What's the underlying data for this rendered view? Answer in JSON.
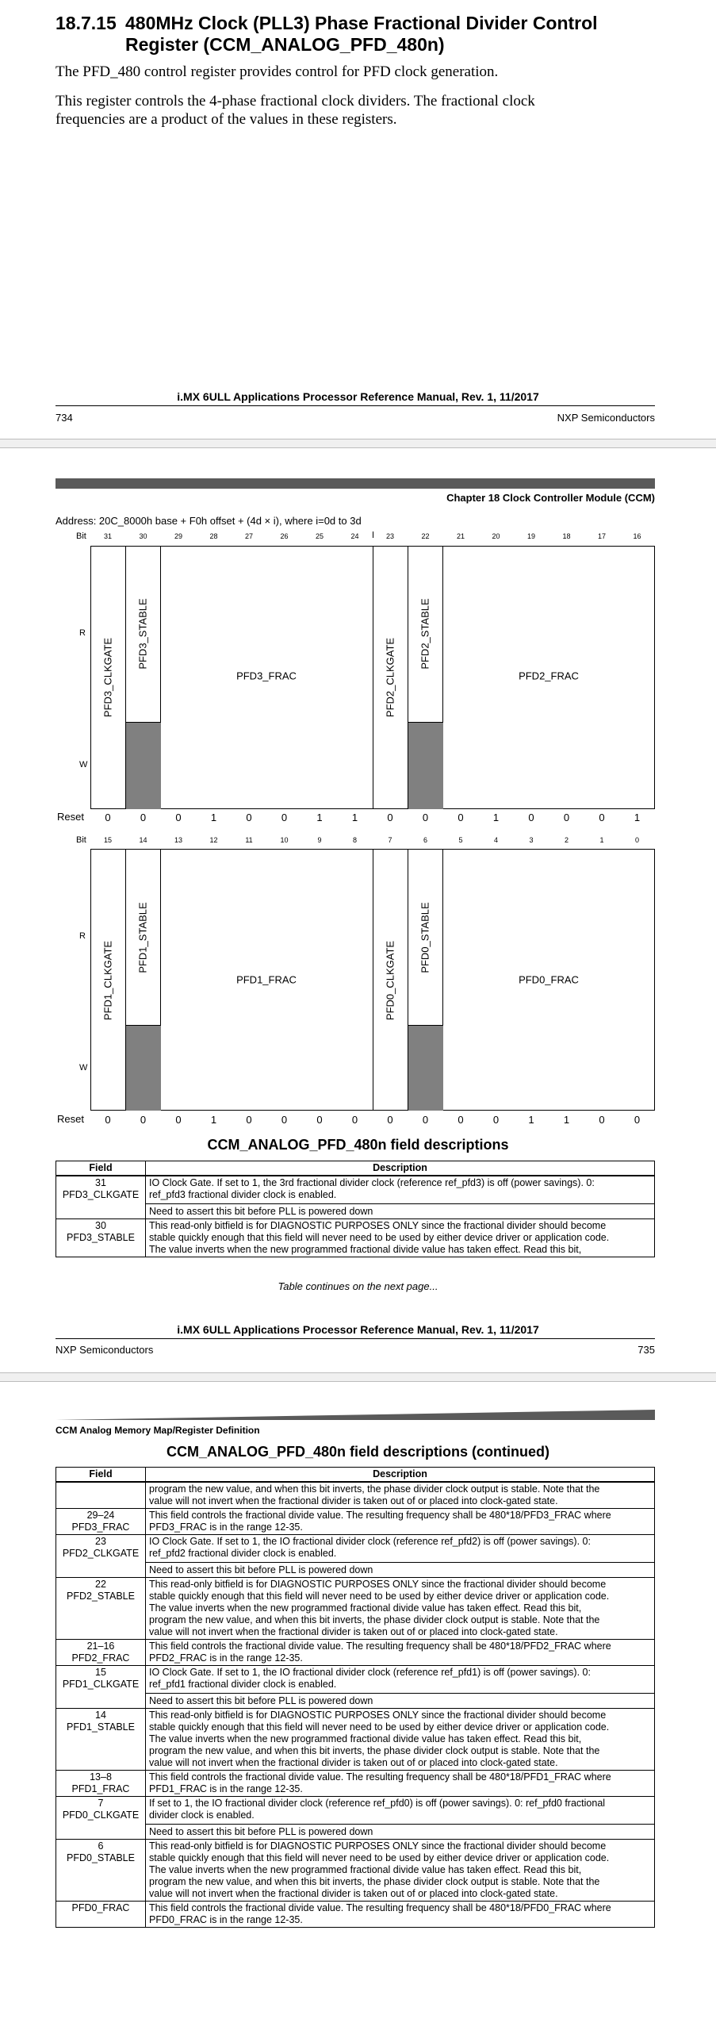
{
  "section": {
    "number": "18.7.15",
    "title_line1": "480MHz Clock (PLL3) Phase Fractional Divider Control",
    "title_line2": "Register (CCM_ANALOG_PFD_480n)"
  },
  "intro": {
    "p1": "The PFD_480 control register provides control for PFD clock generation.",
    "p2_line1": "This register controls the 4-phase fractional clock dividers. The fractional clock",
    "p2_line2": "frequencies are a product of the values in these registers."
  },
  "page1_footer": {
    "title": "i.MX 6ULL Applications Processor Reference Manual, Rev. 1, 11/2017",
    "page": "734",
    "company": "NXP Semiconductors"
  },
  "page2_header": {
    "chapter": "Chapter 18 Clock Controller Module (CCM)"
  },
  "register": {
    "address": "Address: 20C_8000h base + F0h offset + (4d × i), where i=0d to 3d",
    "bit_label": "Bit",
    "r_label": "R",
    "w_label": "W",
    "reset_label": "Reset",
    "upper_bits": [
      "31",
      "30",
      "29",
      "28",
      "27",
      "26",
      "25",
      "24",
      "23",
      "22",
      "21",
      "20",
      "19",
      "18",
      "17",
      "16"
    ],
    "upper_reset": [
      "0",
      "0",
      "0",
      "1",
      "0",
      "0",
      "1",
      "1",
      "0",
      "0",
      "0",
      "1",
      "0",
      "0",
      "0",
      "1"
    ],
    "lower_bits": [
      "15",
      "14",
      "13",
      "12",
      "11",
      "10",
      "9",
      "8",
      "7",
      "6",
      "5",
      "4",
      "3",
      "2",
      "1",
      "0"
    ],
    "lower_reset": [
      "0",
      "0",
      "0",
      "1",
      "0",
      "0",
      "0",
      "0",
      "0",
      "0",
      "0",
      "0",
      "1",
      "1",
      "0",
      "0"
    ],
    "upper_fields": {
      "clkgate_a": "PFD3_CLKGATE",
      "stable_a": "PFD3_STABLE",
      "frac_a": "PFD3_FRAC",
      "clkgate_b": "PFD2_CLKGATE",
      "stable_b": "PFD2_STABLE",
      "frac_b": "PFD2_FRAC"
    },
    "lower_fields": {
      "clkgate_a": "PFD1_CLKGATE",
      "stable_a": "PFD1_STABLE",
      "frac_a": "PFD1_FRAC",
      "clkgate_b": "PFD0_CLKGATE",
      "stable_b": "PFD0_STABLE",
      "frac_b": "PFD0_FRAC"
    }
  },
  "table1": {
    "title": "CCM_ANALOG_PFD_480n field descriptions",
    "col_field": "Field",
    "col_desc": "Description",
    "rows": [
      {
        "bits": "31",
        "name": "PFD3_CLKGATE",
        "lines": [
          "IO Clock Gate. If set to 1, the 3rd fractional divider clock (reference ref_pfd3) is off (power savings). 0:",
          "ref_pfd3 fractional divider clock is enabled."
        ],
        "note": "Need to assert this bit before PLL is powered down"
      },
      {
        "bits": "30",
        "name": "PFD3_STABLE",
        "lines": [
          "This read-only bitfield is for DIAGNOSTIC PURPOSES ONLY since the fractional divider should become",
          "stable quickly enough that this field will never need to be used by either device driver or application code.",
          "The value inverts when the new programmed fractional divide value has taken effect. Read this bit,"
        ],
        "note": ""
      }
    ],
    "continues": "Table continues on the next page..."
  },
  "page2_footer": {
    "title": "i.MX 6ULL Applications Processor Reference Manual, Rev. 1, 11/2017",
    "company": "NXP Semiconductors",
    "page": "735"
  },
  "page3_header": {
    "section": "CCM Analog Memory Map/Register Definition"
  },
  "table2": {
    "title": "CCM_ANALOG_PFD_480n field descriptions (continued)",
    "col_field": "Field",
    "col_desc": "Description",
    "rows": [
      {
        "bits": "",
        "name": "",
        "lines": [
          "program the new value, and when this bit inverts, the phase divider clock output is stable. Note that the",
          "value will not invert when the fractional divider is taken out of or placed into clock-gated state."
        ],
        "note": ""
      },
      {
        "bits": "29–24",
        "name": "PFD3_FRAC",
        "lines": [
          "This field controls the fractional divide value. The resulting frequency shall be 480*18/PFD3_FRAC where",
          "PFD3_FRAC is in the range 12-35."
        ],
        "note": ""
      },
      {
        "bits": "23",
        "name": "PFD2_CLKGATE",
        "lines": [
          "IO Clock Gate. If set to 1, the IO fractional divider clock (reference ref_pfd2) is off (power savings). 0:",
          "ref_pfd2 fractional divider clock is enabled."
        ],
        "note": "Need to assert this bit before PLL is powered down"
      },
      {
        "bits": "22",
        "name": "PFD2_STABLE",
        "lines": [
          "This read-only bitfield is for DIAGNOSTIC PURPOSES ONLY since the fractional divider should become",
          "stable quickly enough that this field will never need to be used by either device driver or application code.",
          "The value inverts when the new programmed fractional divide value has taken effect. Read this bit,",
          "program the new value, and when this bit inverts, the phase divider clock output is stable. Note that the",
          "value will not invert when the fractional divider is taken out of or placed into clock-gated state."
        ],
        "note": ""
      },
      {
        "bits": "21–16",
        "name": "PFD2_FRAC",
        "lines": [
          "This field controls the fractional divide value. The resulting frequency shall be 480*18/PFD2_FRAC where",
          "PFD2_FRAC is in the range 12-35."
        ],
        "note": ""
      },
      {
        "bits": "15",
        "name": "PFD1_CLKGATE",
        "lines": [
          "IO Clock Gate. If set to 1, the IO fractional divider clock (reference ref_pfd1) is off (power savings). 0:",
          "ref_pfd1 fractional divider clock is enabled."
        ],
        "note": "Need to assert this bit before PLL is powered down"
      },
      {
        "bits": "14",
        "name": "PFD1_STABLE",
        "lines": [
          "This read-only bitfield is for DIAGNOSTIC PURPOSES ONLY since the fractional divider should become",
          "stable quickly enough that this field will never need to be used by either device driver or application code.",
          "The value inverts when the new programmed fractional divide value has taken effect. Read this bit,",
          "program the new value, and when this bit inverts, the phase divider clock output is stable. Note that the",
          "value will not invert when the fractional divider is taken out of or placed into clock-gated state."
        ],
        "note": ""
      },
      {
        "bits": "13–8",
        "name": "PFD1_FRAC",
        "lines": [
          "This field controls the fractional divide value. The resulting frequency shall be 480*18/PFD1_FRAC where",
          "PFD1_FRAC is in the range 12-35."
        ],
        "note": ""
      },
      {
        "bits": "7",
        "name": "PFD0_CLKGATE",
        "lines": [
          "If set to 1, the IO fractional divider clock (reference ref_pfd0) is off (power savings). 0: ref_pfd0 fractional",
          "divider clock is enabled."
        ],
        "note": "Need to assert this bit before PLL is powered down"
      },
      {
        "bits": "6",
        "name": "PFD0_STABLE",
        "lines": [
          "This read-only bitfield is for DIAGNOSTIC PURPOSES ONLY since the fractional divider should become",
          "stable quickly enough that this field will never need to be used by either device driver or application code.",
          "The value inverts when the new programmed fractional divide value has taken effect. Read this bit,",
          "program the new value, and when this bit inverts, the phase divider clock output is stable. Note that the",
          "value will not invert when the fractional divider is taken out of or placed into clock-gated state."
        ],
        "note": ""
      },
      {
        "bits": "",
        "name": "PFD0_FRAC",
        "lines": [
          "This field controls the fractional divide value. The resulting frequency shall be 480*18/PFD0_FRAC where",
          "PFD0_FRAC is in the range 12-35."
        ],
        "note": ""
      }
    ]
  }
}
